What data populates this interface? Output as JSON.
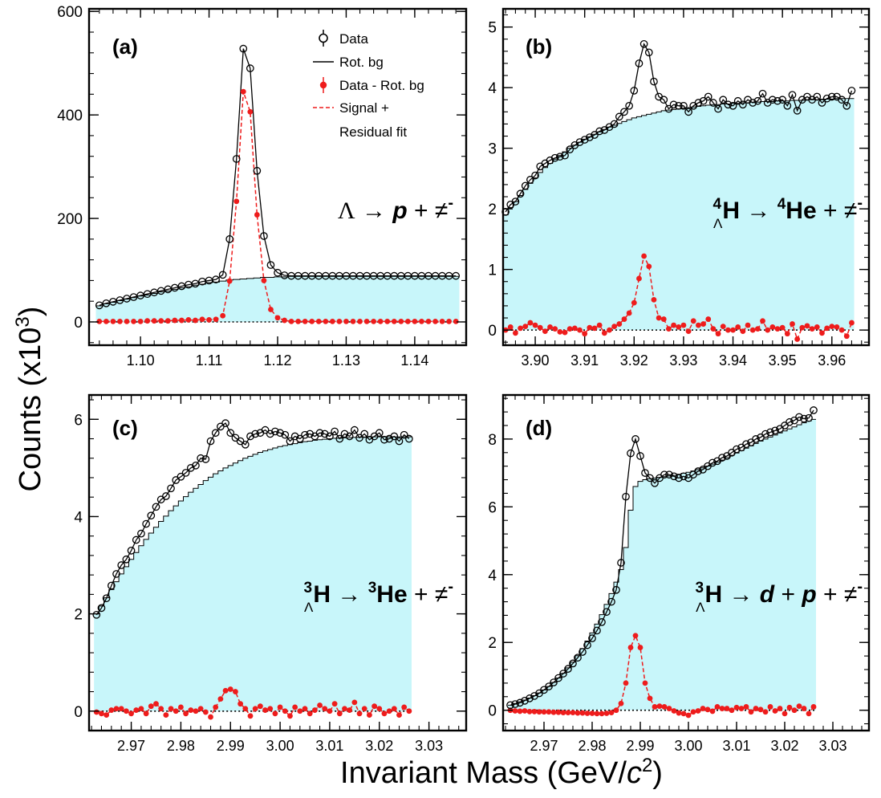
{
  "figure": {
    "ylabel": "Counts (x10",
    "ylabel_sup": "3",
    "ylabel_end": ")",
    "xlabel": "Invariant Mass (GeV/",
    "xlabel_c": "c",
    "xlabel_sup": "2",
    "xlabel_end": ")"
  },
  "legend": {
    "data": "Data",
    "rotbg": "Rot. bg",
    "sub": "Data - Rot. bg",
    "fit1": "Signal +",
    "fit2": "Residual fit"
  },
  "colors": {
    "fill": "#c8f6fa",
    "red": "#ee1c1c",
    "black": "#000000"
  },
  "chart_data": [
    {
      "id": "a",
      "type": "line",
      "panel_label": "(a)",
      "reaction": {
        "parent": "Λ",
        "parent_sup": "",
        "parent_sub": "",
        "arrow": "→",
        "daughters": [
          {
            "sup": "",
            "name": "p",
            "italic": true
          },
          {
            "sup": "",
            "name": "≠",
            "minus": true
          }
        ]
      },
      "xlim": [
        1.0925,
        1.1475
      ],
      "ylim": [
        -45,
        605
      ],
      "x_ticks": [
        1.1,
        1.11,
        1.12,
        1.13,
        1.14
      ],
      "x_tick_labels": [
        "1.10",
        "1.11",
        "1.12",
        "1.13",
        "1.14"
      ],
      "y_ticks": [
        0,
        200,
        400,
        600
      ],
      "y_tick_labels": [
        "0",
        "200",
        "400",
        "600"
      ],
      "x_start": 1.094,
      "bin_width": 0.001,
      "bg_end": 1.147,
      "data": [
        32,
        36,
        39,
        42,
        45,
        48,
        51,
        54,
        57,
        60,
        63,
        66,
        69,
        72,
        74,
        78,
        80,
        82,
        91,
        160,
        315,
        528,
        490,
        292,
        166,
        110,
        95,
        90,
        89,
        89,
        89,
        89,
        89,
        89,
        89,
        89,
        89,
        89,
        89,
        89,
        89,
        89,
        89,
        89,
        89,
        89,
        89,
        89,
        89,
        89,
        89,
        89,
        89
      ],
      "bg": [
        31,
        35,
        38,
        41,
        44,
        47,
        50,
        52,
        55,
        58,
        60,
        63,
        66,
        68,
        71,
        73,
        76,
        77,
        79,
        81,
        82,
        83,
        84,
        85,
        86,
        86,
        87,
        87,
        88,
        88,
        88,
        88,
        88,
        88,
        88,
        88,
        88,
        88,
        88,
        88,
        88,
        88,
        88,
        88,
        88,
        88,
        88,
        88,
        88,
        88,
        88,
        88,
        88
      ],
      "sub": [
        1,
        1,
        1,
        1,
        1,
        1,
        1,
        2,
        2,
        2,
        2,
        3,
        3,
        4,
        3,
        5,
        4,
        5,
        12,
        79,
        233,
        445,
        406,
        207,
        80,
        24,
        8,
        3,
        1,
        1,
        1,
        1,
        1,
        1,
        1,
        1,
        1,
        1,
        1,
        1,
        1,
        1,
        1,
        1,
        1,
        1,
        1,
        1,
        1,
        1,
        1,
        1,
        1
      ],
      "has_legend": true
    },
    {
      "id": "b",
      "type": "line",
      "panel_label": "(b)",
      "reaction": {
        "parent": "H",
        "parent_sup": "4",
        "parent_sub": "Λ",
        "arrow": "→",
        "daughters": [
          {
            "sup": "4",
            "name": "He",
            "italic": false
          },
          {
            "sup": "",
            "name": "≠",
            "minus": true
          }
        ]
      },
      "xlim": [
        3.8935,
        3.9675
      ],
      "ylim": [
        -0.25,
        5.3
      ],
      "x_ticks": [
        3.9,
        3.91,
        3.92,
        3.93,
        3.94,
        3.95,
        3.96
      ],
      "x_tick_labels": [
        "3.90",
        "3.91",
        "3.92",
        "3.93",
        "3.94",
        "3.95",
        "3.96"
      ],
      "y_ticks": [
        0,
        1,
        2,
        3,
        4,
        5
      ],
      "y_tick_labels": [
        "0",
        "1",
        "2",
        "3",
        "4",
        "5"
      ],
      "x_start": 3.894,
      "bin_width": 0.001,
      "bg_end": 3.967,
      "data": [
        1.95,
        2.07,
        2.12,
        2.25,
        2.38,
        2.48,
        2.55,
        2.7,
        2.75,
        2.8,
        2.84,
        2.86,
        2.88,
        2.98,
        3.05,
        3.1,
        3.14,
        3.18,
        3.22,
        3.28,
        3.3,
        3.35,
        3.4,
        3.52,
        3.6,
        3.7,
        3.95,
        4.4,
        4.72,
        4.58,
        4.1,
        3.85,
        3.8,
        3.65,
        3.72,
        3.7,
        3.7,
        3.6,
        3.7,
        3.75,
        3.78,
        3.85,
        3.75,
        3.65,
        3.8,
        3.72,
        3.7,
        3.78,
        3.72,
        3.8,
        3.75,
        3.78,
        3.9,
        3.75,
        3.8,
        3.78,
        3.8,
        3.7,
        3.88,
        3.62,
        3.8,
        3.85,
        3.8,
        3.85,
        3.75,
        3.82,
        3.85,
        3.85,
        3.8,
        3.7,
        3.95
      ],
      "bg": [
        1.9,
        2.02,
        2.12,
        2.22,
        2.32,
        2.42,
        2.51,
        2.6,
        2.68,
        2.75,
        2.82,
        2.88,
        2.94,
        3.0,
        3.05,
        3.1,
        3.15,
        3.19,
        3.23,
        3.27,
        3.31,
        3.35,
        3.38,
        3.41,
        3.44,
        3.47,
        3.5,
        3.52,
        3.54,
        3.56,
        3.58,
        3.6,
        3.62,
        3.63,
        3.64,
        3.65,
        3.66,
        3.67,
        3.68,
        3.69,
        3.7,
        3.71,
        3.72,
        3.72,
        3.73,
        3.73,
        3.74,
        3.74,
        3.75,
        3.75,
        3.76,
        3.76,
        3.77,
        3.77,
        3.77,
        3.78,
        3.78,
        3.78,
        3.79,
        3.79,
        3.79,
        3.8,
        3.8,
        3.8,
        3.81,
        3.81,
        3.81,
        3.82,
        3.82,
        3.82,
        3.82
      ],
      "sub": [
        0.0,
        0.05,
        -0.05,
        0.03,
        0.06,
        0.12,
        0.08,
        0.04,
        -0.02,
        0.05,
        0.02,
        -0.03,
        -0.04,
        0.02,
        0.03,
        0.0,
        -0.06,
        0.04,
        0.03,
        0.08,
        -0.05,
        0.0,
        0.06,
        0.1,
        0.18,
        0.28,
        0.45,
        0.85,
        1.22,
        1.05,
        0.5,
        0.2,
        0.18,
        0.02,
        0.08,
        0.05,
        0.08,
        -0.02,
        0.15,
        0.08,
        0.1,
        0.18,
        0.02,
        -0.06,
        0.06,
        0.0,
        0.0,
        0.05,
        -0.02,
        0.08,
        0.0,
        0.02,
        0.15,
        0.0,
        0.05,
        0.02,
        0.04,
        -0.06,
        0.1,
        -0.15,
        0.04,
        0.07,
        0.02,
        0.05,
        -0.05,
        0.03,
        0.06,
        0.05,
        0.0,
        -0.1,
        0.12
      ],
      "has_legend": false
    },
    {
      "id": "c",
      "type": "line",
      "panel_label": "(c)",
      "reaction": {
        "parent": "H",
        "parent_sup": "3",
        "parent_sub": "Λ",
        "arrow": "→",
        "daughters": [
          {
            "sup": "3",
            "name": "He",
            "italic": false
          },
          {
            "sup": "",
            "name": "≠",
            "minus": true
          }
        ]
      },
      "xlim": [
        2.9615,
        3.0375
      ],
      "ylim": [
        -0.4,
        6.5
      ],
      "x_ticks": [
        2.97,
        2.98,
        2.99,
        3.0,
        3.01,
        3.02,
        3.03
      ],
      "x_tick_labels": [
        "2.97",
        "2.98",
        "2.99",
        "3.00",
        "3.01",
        "3.02",
        "3.03"
      ],
      "y_ticks": [
        0,
        2,
        4,
        6
      ],
      "y_tick_labels": [
        "0",
        "2",
        "4",
        "6"
      ],
      "x_start": 2.963,
      "bin_width": 0.001,
      "bg_end": 3.037,
      "data": [
        1.98,
        2.12,
        2.32,
        2.58,
        2.82,
        3.0,
        3.12,
        3.3,
        3.52,
        3.65,
        3.85,
        4.02,
        4.2,
        4.35,
        4.42,
        4.58,
        4.75,
        4.82,
        4.9,
        5.0,
        5.05,
        5.2,
        5.18,
        5.55,
        5.72,
        5.85,
        5.92,
        5.72,
        5.62,
        5.55,
        5.48,
        5.65,
        5.7,
        5.72,
        5.78,
        5.7,
        5.75,
        5.72,
        5.68,
        5.55,
        5.65,
        5.6,
        5.68,
        5.7,
        5.65,
        5.72,
        5.7,
        5.65,
        5.75,
        5.6,
        5.7,
        5.65,
        5.78,
        5.62,
        5.7,
        5.58,
        5.65,
        5.72,
        5.58,
        5.6,
        5.65,
        5.55,
        5.68,
        5.6
      ],
      "bg": [
        2.0,
        2.16,
        2.33,
        2.5,
        2.66,
        2.82,
        2.97,
        3.12,
        3.26,
        3.4,
        3.53,
        3.66,
        3.78,
        3.9,
        4.01,
        4.12,
        4.22,
        4.32,
        4.41,
        4.5,
        4.58,
        4.66,
        4.74,
        4.81,
        4.88,
        4.94,
        5.0,
        5.05,
        5.1,
        5.15,
        5.2,
        5.24,
        5.28,
        5.32,
        5.35,
        5.38,
        5.41,
        5.44,
        5.46,
        5.48,
        5.5,
        5.52,
        5.54,
        5.55,
        5.57,
        5.58,
        5.59,
        5.6,
        5.61,
        5.61,
        5.62,
        5.62,
        5.63,
        5.63,
        5.63,
        5.64,
        5.64,
        5.64,
        5.64,
        5.64,
        5.64,
        5.64,
        5.64,
        5.64
      ],
      "sub": [
        -0.02,
        -0.05,
        -0.08,
        0.02,
        0.05,
        0.05,
        0.0,
        -0.05,
        0.02,
        0.05,
        -0.05,
        0.1,
        0.15,
        0.05,
        -0.08,
        0.05,
        0.0,
        0.08,
        -0.05,
        0.02,
        0.0,
        0.05,
        -0.02,
        -0.12,
        0.08,
        0.25,
        0.42,
        0.45,
        0.4,
        0.15,
        0.05,
        -0.1,
        0.05,
        0.1,
        0.02,
        0.05,
        -0.05,
        0.08,
        0.0,
        -0.1,
        0.08,
        0.0,
        0.05,
        -0.05,
        0.02,
        0.12,
        0.05,
        0.0,
        0.15,
        -0.05,
        0.05,
        0.02,
        0.18,
        -0.05,
        0.05,
        -0.08,
        0.1,
        0.05,
        -0.05,
        0.0,
        0.05,
        -0.08,
        0.08,
        0.0
      ],
      "has_legend": false
    },
    {
      "id": "d",
      "type": "line",
      "panel_label": "(d)",
      "reaction": {
        "parent": "H",
        "parent_sup": "3",
        "parent_sub": "Λ",
        "arrow": "→",
        "daughters": [
          {
            "sup": "",
            "name": "d",
            "italic": true
          },
          {
            "sup": "",
            "name": "p",
            "italic": true
          },
          {
            "sup": "",
            "name": "≠",
            "minus": true
          }
        ]
      },
      "xlim": [
        2.9615,
        3.0375
      ],
      "ylim": [
        -0.6,
        9.3
      ],
      "x_ticks": [
        2.97,
        2.98,
        2.99,
        3.0,
        3.01,
        3.02,
        3.03
      ],
      "x_tick_labels": [
        "2.97",
        "2.98",
        "2.99",
        "3.00",
        "3.01",
        "3.02",
        "3.03"
      ],
      "y_ticks": [
        0,
        2,
        4,
        6,
        8
      ],
      "y_tick_labels": [
        "0",
        "2",
        "4",
        "6",
        "8"
      ],
      "x_start": 2.963,
      "bin_width": 0.001,
      "bg_end": 3.037,
      "data": [
        0.15,
        0.18,
        0.22,
        0.28,
        0.35,
        0.42,
        0.5,
        0.6,
        0.7,
        0.82,
        0.95,
        1.08,
        1.22,
        1.38,
        1.55,
        1.72,
        1.92,
        2.12,
        2.35,
        2.6,
        2.9,
        3.2,
        3.55,
        4.35,
        6.3,
        7.58,
        8.0,
        7.5,
        7.0,
        6.85,
        6.7,
        6.85,
        6.95,
        6.95,
        6.9,
        6.85,
        6.9,
        6.85,
        6.95,
        7.05,
        7.1,
        7.2,
        7.3,
        7.35,
        7.45,
        7.5,
        7.6,
        7.7,
        7.75,
        7.85,
        7.9,
        8.0,
        8.05,
        8.15,
        8.2,
        8.25,
        8.3,
        8.4,
        8.5,
        8.55,
        8.65,
        8.6,
        8.62,
        8.85
      ],
      "bg": [
        0.15,
        0.2,
        0.25,
        0.3,
        0.36,
        0.43,
        0.51,
        0.6,
        0.7,
        0.82,
        0.95,
        1.09,
        1.25,
        1.42,
        1.61,
        1.82,
        2.04,
        2.28,
        2.54,
        2.82,
        3.12,
        3.44,
        3.78,
        4.15,
        4.8,
        5.9,
        6.6,
        6.75,
        6.8,
        6.83,
        6.85,
        6.87,
        6.89,
        6.91,
        6.93,
        6.96,
        6.99,
        7.02,
        7.06,
        7.1,
        7.15,
        7.2,
        7.26,
        7.32,
        7.38,
        7.45,
        7.52,
        7.59,
        7.66,
        7.73,
        7.8,
        7.87,
        7.94,
        8.0,
        8.06,
        8.12,
        8.18,
        8.24,
        8.3,
        8.36,
        8.42,
        8.48,
        8.53,
        8.58
      ],
      "sub": [
        0.0,
        -0.02,
        -0.03,
        -0.02,
        -0.04,
        -0.04,
        -0.05,
        -0.05,
        -0.05,
        -0.06,
        -0.06,
        -0.07,
        -0.07,
        -0.07,
        -0.08,
        -0.08,
        -0.09,
        -0.09,
        -0.1,
        -0.1,
        -0.09,
        -0.07,
        0.0,
        0.2,
        0.8,
        1.85,
        2.2,
        1.85,
        0.8,
        0.35,
        0.1,
        0.12,
        0.1,
        0.05,
        -0.02,
        -0.08,
        -0.1,
        -0.15,
        -0.05,
        -0.02,
        0.05,
        0.02,
        -0.03,
        0.1,
        0.05,
        0.05,
        0.0,
        0.08,
        0.05,
        0.1,
        -0.05,
        0.05,
        0.02,
        -0.05,
        0.1,
        -0.02,
        0.05,
        -0.1,
        0.08,
        0.0,
        0.12,
        0.05,
        -0.1,
        0.1
      ],
      "has_legend": false
    }
  ]
}
